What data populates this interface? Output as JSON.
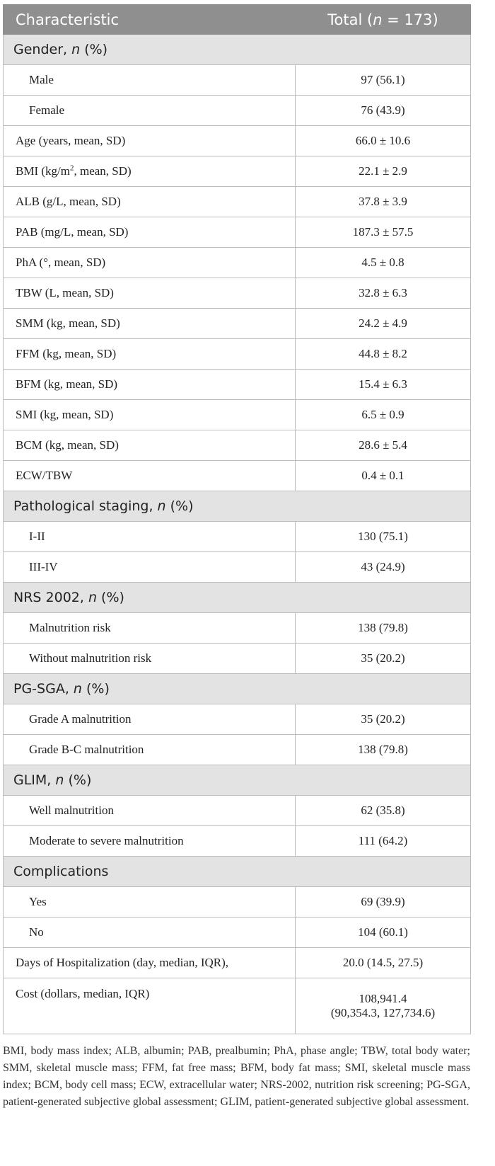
{
  "header": {
    "characteristic": "Characteristic",
    "total_pre": "Total (",
    "total_n": "n",
    "total_post": " = 173)"
  },
  "sections": [
    {
      "title_pre": "Gender, ",
      "title_n": "n",
      "title_post": " (%)",
      "rows": [
        {
          "label": "Male",
          "value": "97 (56.1)",
          "sub": true
        },
        {
          "label": "Female",
          "value": "76 (43.9)",
          "sub": true
        }
      ]
    }
  ],
  "measures": [
    {
      "label": "Age (years, mean, SD)",
      "value": "66.0 ± 10.6"
    },
    {
      "label_pre": "BMI (kg/m",
      "label_sup": "2",
      "label_post": ", mean, SD)",
      "value": "22.1 ± 2.9"
    },
    {
      "label": "ALB (g/L, mean, SD)",
      "value": "37.8 ± 3.9"
    },
    {
      "label": "PAB (mg/L, mean, SD)",
      "value": "187.3 ± 57.5"
    },
    {
      "label": "PhA (°, mean, SD)",
      "value": "4.5 ± 0.8"
    },
    {
      "label": "TBW (L, mean, SD)",
      "value": "32.8 ± 6.3"
    },
    {
      "label": "SMM (kg, mean, SD)",
      "value": "24.2 ± 4.9"
    },
    {
      "label": "FFM (kg, mean, SD)",
      "value": "44.8 ± 8.2"
    },
    {
      "label": "BFM (kg, mean, SD)",
      "value": "15.4 ± 6.3"
    },
    {
      "label": "SMI (kg, mean, SD)",
      "value": "6.5 ± 0.9"
    },
    {
      "label": "BCM (kg, mean, SD)",
      "value": "28.6 ± 5.4"
    },
    {
      "label": "ECW/TBW",
      "value": "0.4 ± 0.1"
    }
  ],
  "staging": {
    "title_pre": "Pathological staging, ",
    "title_n": "n",
    "title_post": " (%)",
    "rows": [
      {
        "label": "I-II",
        "value": "130 (75.1)"
      },
      {
        "label": "III-IV",
        "value": "43 (24.9)"
      }
    ]
  },
  "nrs": {
    "title_pre": "NRS 2002, ",
    "title_n": "n",
    "title_post": " (%)",
    "rows": [
      {
        "label": "Malnutrition risk",
        "value": "138 (79.8)"
      },
      {
        "label": "Without malnutrition risk",
        "value": "35 (20.2)"
      }
    ]
  },
  "pgsga": {
    "title_pre": "PG-SGA, ",
    "title_n": "n",
    "title_post": " (%)",
    "rows": [
      {
        "label": "Grade A malnutrition",
        "value": "35 (20.2)"
      },
      {
        "label": "Grade B-C malnutrition",
        "value": "138 (79.8)"
      }
    ]
  },
  "glim": {
    "title_pre": "GLIM, ",
    "title_n": "n",
    "title_post": " (%)",
    "rows": [
      {
        "label": "Well malnutrition",
        "value": "62 (35.8)"
      },
      {
        "label": "Moderate to severe malnutrition",
        "value": "111 (64.2)"
      }
    ]
  },
  "complications": {
    "title": "Complications",
    "rows": [
      {
        "label": "Yes",
        "value": "69 (39.9)"
      },
      {
        "label": "No",
        "value": "104 (60.1)"
      }
    ]
  },
  "hospitalization": {
    "label": "Days of Hospitalization (day, median, IQR),",
    "value": "20.0 (14.5, 27.5)"
  },
  "cost": {
    "label": "Cost (dollars, median, IQR)",
    "value_line1": "108,941.4",
    "value_line2": "(90,354.3, 127,734.6)"
  },
  "footnote": "BMI, body mass index; ALB, albumin; PAB, prealbumin; PhA, phase angle; TBW, total body water; SMM, skeletal muscle mass; FFM, fat free mass; BFM, body fat mass; SMI, skeletal muscle mass index; BCM, body cell mass; ECW, extracellular water; NRS-2002, nutrition risk screening; PG-SGA, patient-generated subjective global assessment; GLIM, patient-generated subjective global assessment."
}
